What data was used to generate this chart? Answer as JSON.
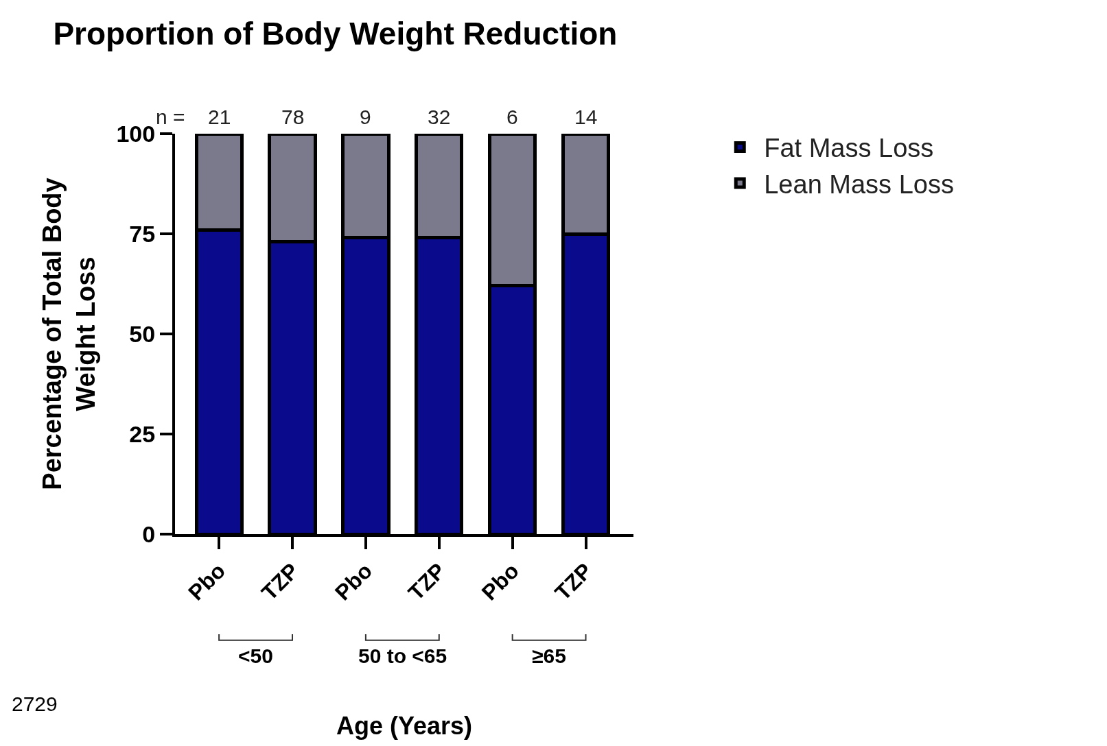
{
  "chart_data": {
    "type": "bar",
    "title": "Proportion of Body Weight Reduction",
    "xlabel": "Age (Years)",
    "ylabel": "Percentage of Total Body Weight Loss",
    "categories": [
      "Pbo",
      "TZP",
      "Pbo",
      "TZP",
      "Pbo",
      "TZP"
    ],
    "stacked": true,
    "series": [
      {
        "name": "Fat Mass Loss",
        "color": "#0a0a8c",
        "values": [
          76,
          73,
          74,
          74,
          62,
          75
        ]
      },
      {
        "name": "Lean Mass Loss",
        "color": "#7a7a8c",
        "values": [
          24,
          27,
          26,
          26,
          38,
          25
        ]
      }
    ],
    "ylim": [
      0,
      100
    ],
    "yticks": [
      0,
      25,
      50,
      75,
      100
    ],
    "grid": false,
    "legend": "top right",
    "annotations": [
      "n =",
      "21",
      "78",
      "9",
      "32",
      "6",
      "14",
      "<50",
      "50 to <65",
      "≥65",
      "2729"
    ]
  }
}
